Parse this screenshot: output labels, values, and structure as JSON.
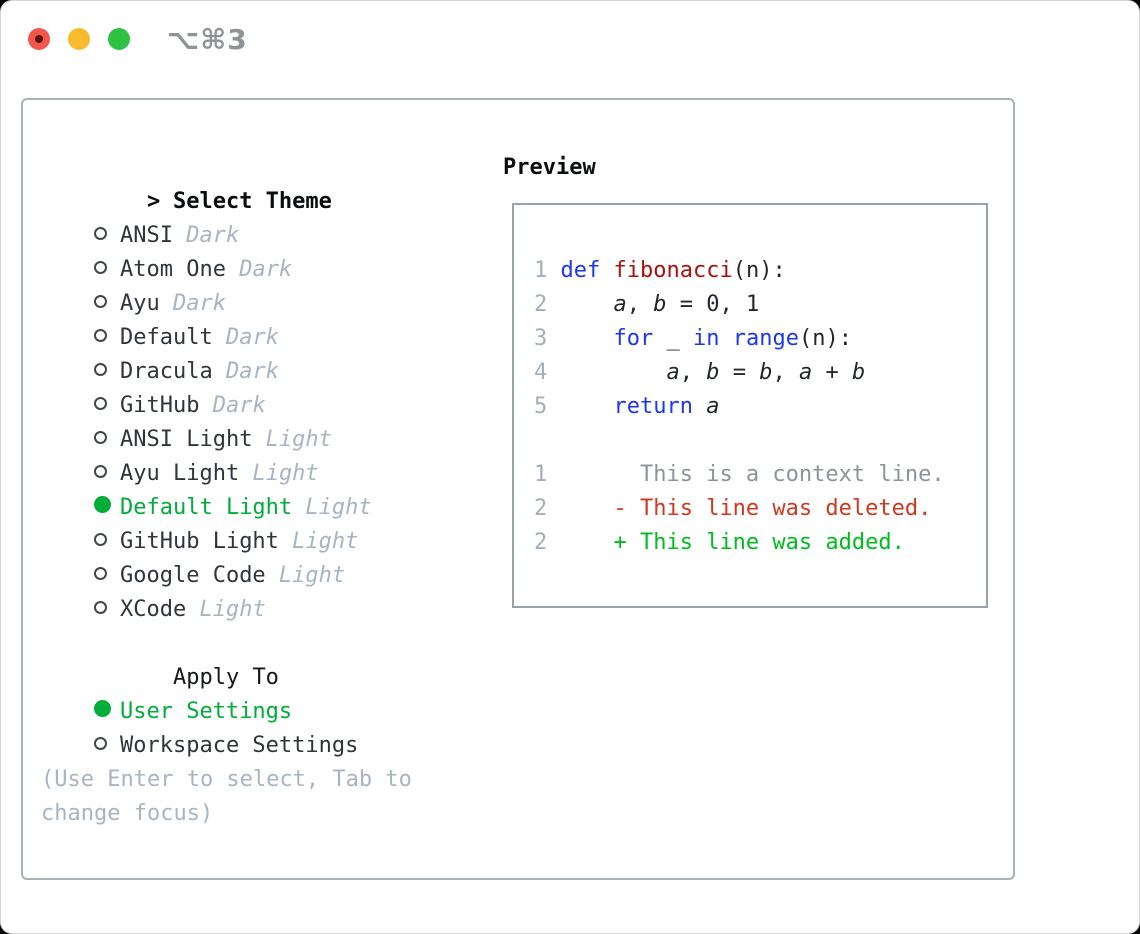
{
  "window": {
    "title": "⌥⌘3"
  },
  "colors": {
    "accent_green": "#00ad3a",
    "added_green": "#00bd1d",
    "deleted_red": "#d2371f",
    "keyword_blue": "#1d36f0",
    "function_red": "#a8130d",
    "muted_gray": "#a9b4c2",
    "traffic_red": "#f2574d",
    "traffic_yellow": "#f8bb2d",
    "traffic_green": "#2fc144"
  },
  "theme_select": {
    "header_prefix": ">",
    "header_label": "Select Theme",
    "items": [
      {
        "label": "ANSI",
        "tag": "Dark",
        "selected": false
      },
      {
        "label": "Atom One",
        "tag": "Dark",
        "selected": false
      },
      {
        "label": "Ayu",
        "tag": "Dark",
        "selected": false
      },
      {
        "label": "Default",
        "tag": "Dark",
        "selected": false
      },
      {
        "label": "Dracula",
        "tag": "Dark",
        "selected": false
      },
      {
        "label": "GitHub",
        "tag": "Dark",
        "selected": false
      },
      {
        "label": "ANSI Light",
        "tag": "Light",
        "selected": false
      },
      {
        "label": "Ayu Light",
        "tag": "Light",
        "selected": false
      },
      {
        "label": "Default Light",
        "tag": "Light",
        "selected": true
      },
      {
        "label": "GitHub Light",
        "tag": "Light",
        "selected": false
      },
      {
        "label": "Google Code",
        "tag": "Light",
        "selected": false
      },
      {
        "label": "XCode",
        "tag": "Light",
        "selected": false
      }
    ]
  },
  "apply_to": {
    "label": "Apply To",
    "options": [
      {
        "label": "User Settings",
        "selected": true
      },
      {
        "label": "Workspace Settings",
        "selected": false
      }
    ]
  },
  "hint_lines": [
    "(Use Enter to select, Tab to",
    "change focus)"
  ],
  "preview": {
    "label": "Preview",
    "lines": [
      {
        "segs": [
          [
            "1 ",
            "ln"
          ],
          [
            "def",
            "kw"
          ],
          [
            " ",
            "pl"
          ],
          [
            "fibonacci",
            "fn"
          ],
          [
            "(n):",
            "pl"
          ]
        ]
      },
      {
        "segs": [
          [
            "2 ",
            "ln"
          ],
          [
            "    ",
            "pl"
          ],
          [
            "a",
            "vr"
          ],
          [
            ", ",
            "pl"
          ],
          [
            "b",
            "vr"
          ],
          [
            " = 0, 1",
            "pl"
          ]
        ]
      },
      {
        "segs": [
          [
            "3 ",
            "ln"
          ],
          [
            "    ",
            "pl"
          ],
          [
            "for",
            "kw"
          ],
          [
            " _ ",
            "pl"
          ],
          [
            "in",
            "kw"
          ],
          [
            " ",
            "pl"
          ],
          [
            "range",
            "kw"
          ],
          [
            "(n):",
            "pl"
          ]
        ]
      },
      {
        "segs": [
          [
            "4 ",
            "ln"
          ],
          [
            "        ",
            "pl"
          ],
          [
            "a",
            "vr"
          ],
          [
            ", ",
            "pl"
          ],
          [
            "b",
            "vr"
          ],
          [
            " = ",
            "pl"
          ],
          [
            "b",
            "vr"
          ],
          [
            ", ",
            "pl"
          ],
          [
            "a",
            "vr"
          ],
          [
            " + ",
            "pl"
          ],
          [
            "b",
            "vr"
          ]
        ]
      },
      {
        "segs": [
          [
            "5 ",
            "ln"
          ],
          [
            "    ",
            "pl"
          ],
          [
            "return",
            "kw"
          ],
          [
            " ",
            "pl"
          ],
          [
            "a",
            "vr"
          ]
        ]
      },
      {
        "segs": []
      },
      {
        "segs": [
          [
            "1 ",
            "ln"
          ],
          [
            "      This is a context line.",
            "cx"
          ]
        ]
      },
      {
        "segs": [
          [
            "2 ",
            "ln"
          ],
          [
            "    - This line was deleted.",
            "dl"
          ]
        ]
      },
      {
        "segs": [
          [
            "2 ",
            "ln"
          ],
          [
            "    + This line was added.",
            "ad"
          ]
        ]
      }
    ]
  }
}
